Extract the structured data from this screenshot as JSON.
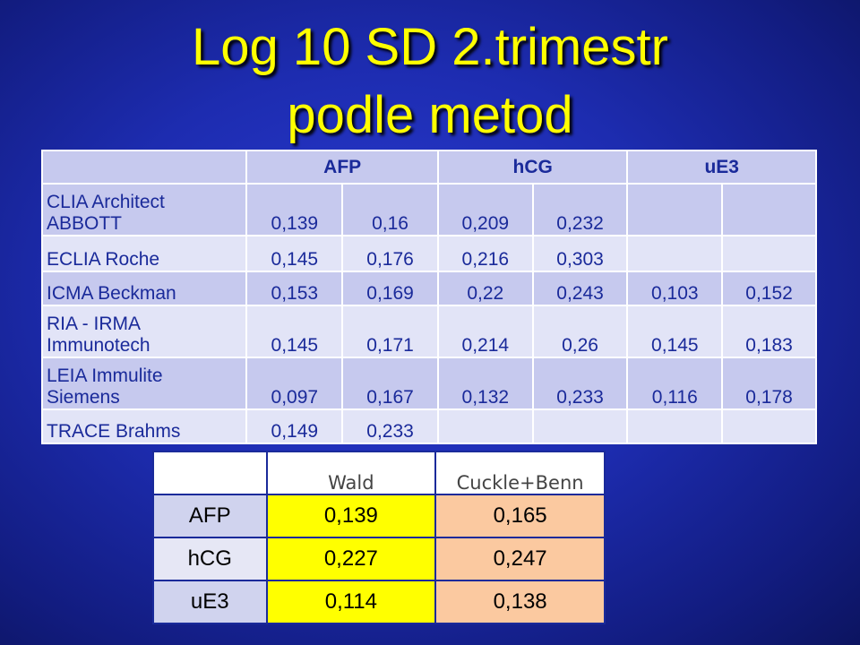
{
  "title_line1": "Log 10 SD   2.trimestr",
  "title_line2": "podle metod",
  "main_table": {
    "headers": [
      "",
      "AFP",
      "hCG",
      "uE3"
    ],
    "rows": [
      {
        "label_line1": "CLIA Architect",
        "label_line2": "ABBOTT",
        "values": [
          "0,139",
          "0,16",
          "0,209",
          "0,232",
          "",
          ""
        ]
      },
      {
        "label_line1": "",
        "label_line2": "ECLIA Roche",
        "values": [
          "0,145",
          "0,176",
          "0,216",
          "0,303",
          "",
          ""
        ]
      },
      {
        "label_line1": "",
        "label_line2": "ICMA Beckman",
        "values": [
          "0,153",
          "0,169",
          "0,22",
          "0,243",
          "0,103",
          "0,152"
        ]
      },
      {
        "label_line1": "RIA - IRMA",
        "label_line2": "Immunotech",
        "values": [
          "0,145",
          "0,171",
          "0,214",
          "0,26",
          "0,145",
          "0,183"
        ]
      },
      {
        "label_line1": "LEIA Immulite",
        "label_line2": "Siemens",
        "values": [
          "0,097",
          "0,167",
          "0,132",
          "0,233",
          "0,116",
          "0,178"
        ]
      },
      {
        "label_line1": "",
        "label_line2": "TRACE Brahms",
        "values": [
          "0,149",
          "0,233",
          "",
          "",
          "",
          ""
        ]
      }
    ]
  },
  "sub_table": {
    "headers": [
      "",
      "Wald",
      "Cuckle+Benn"
    ],
    "rows": [
      {
        "label": "AFP",
        "wald": "0,139",
        "cuckle": "0,165"
      },
      {
        "label": "hCG",
        "wald": "0,227",
        "cuckle": "0,247"
      },
      {
        "label": "uE3",
        "wald": "0,114",
        "cuckle": "0,138"
      }
    ]
  },
  "colors": {
    "title": "#ffff00",
    "wald_cell": "#ffff00",
    "cuckle_cell": "#fbc9a0",
    "background": "#1d2cb0"
  }
}
